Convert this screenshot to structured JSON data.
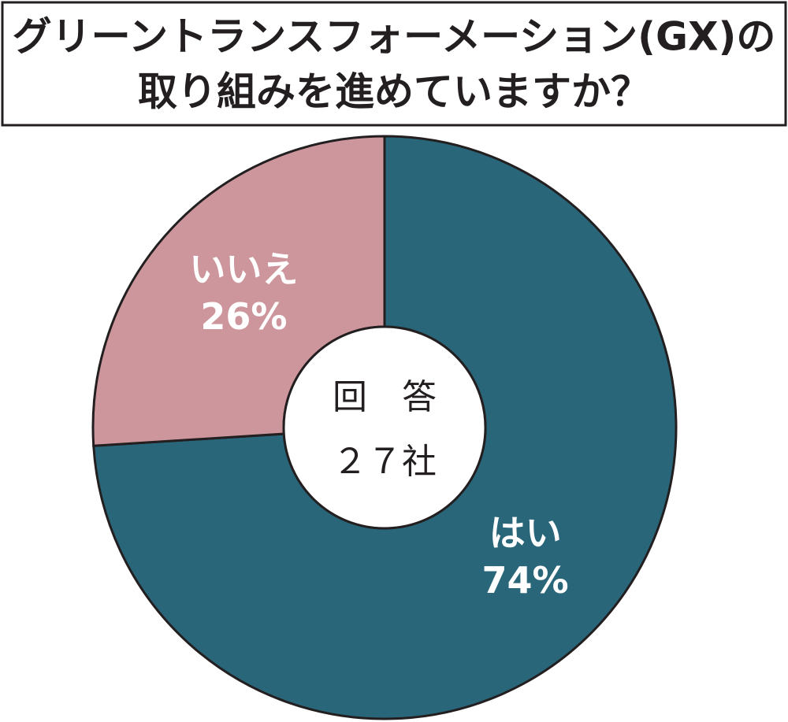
{
  "chart_data": {
    "type": "donut",
    "title": [
      "グリーントランスフォーメーション(GX)の",
      "取り組みを進めていますか？"
    ],
    "categories": [
      "はい",
      "いいえ"
    ],
    "values": [
      74,
      26
    ],
    "value_labels": [
      "74%",
      "26%"
    ],
    "colors": [
      "#2a6679",
      "#cd969c"
    ],
    "center_text": [
      "回　答",
      "２７社"
    ]
  }
}
